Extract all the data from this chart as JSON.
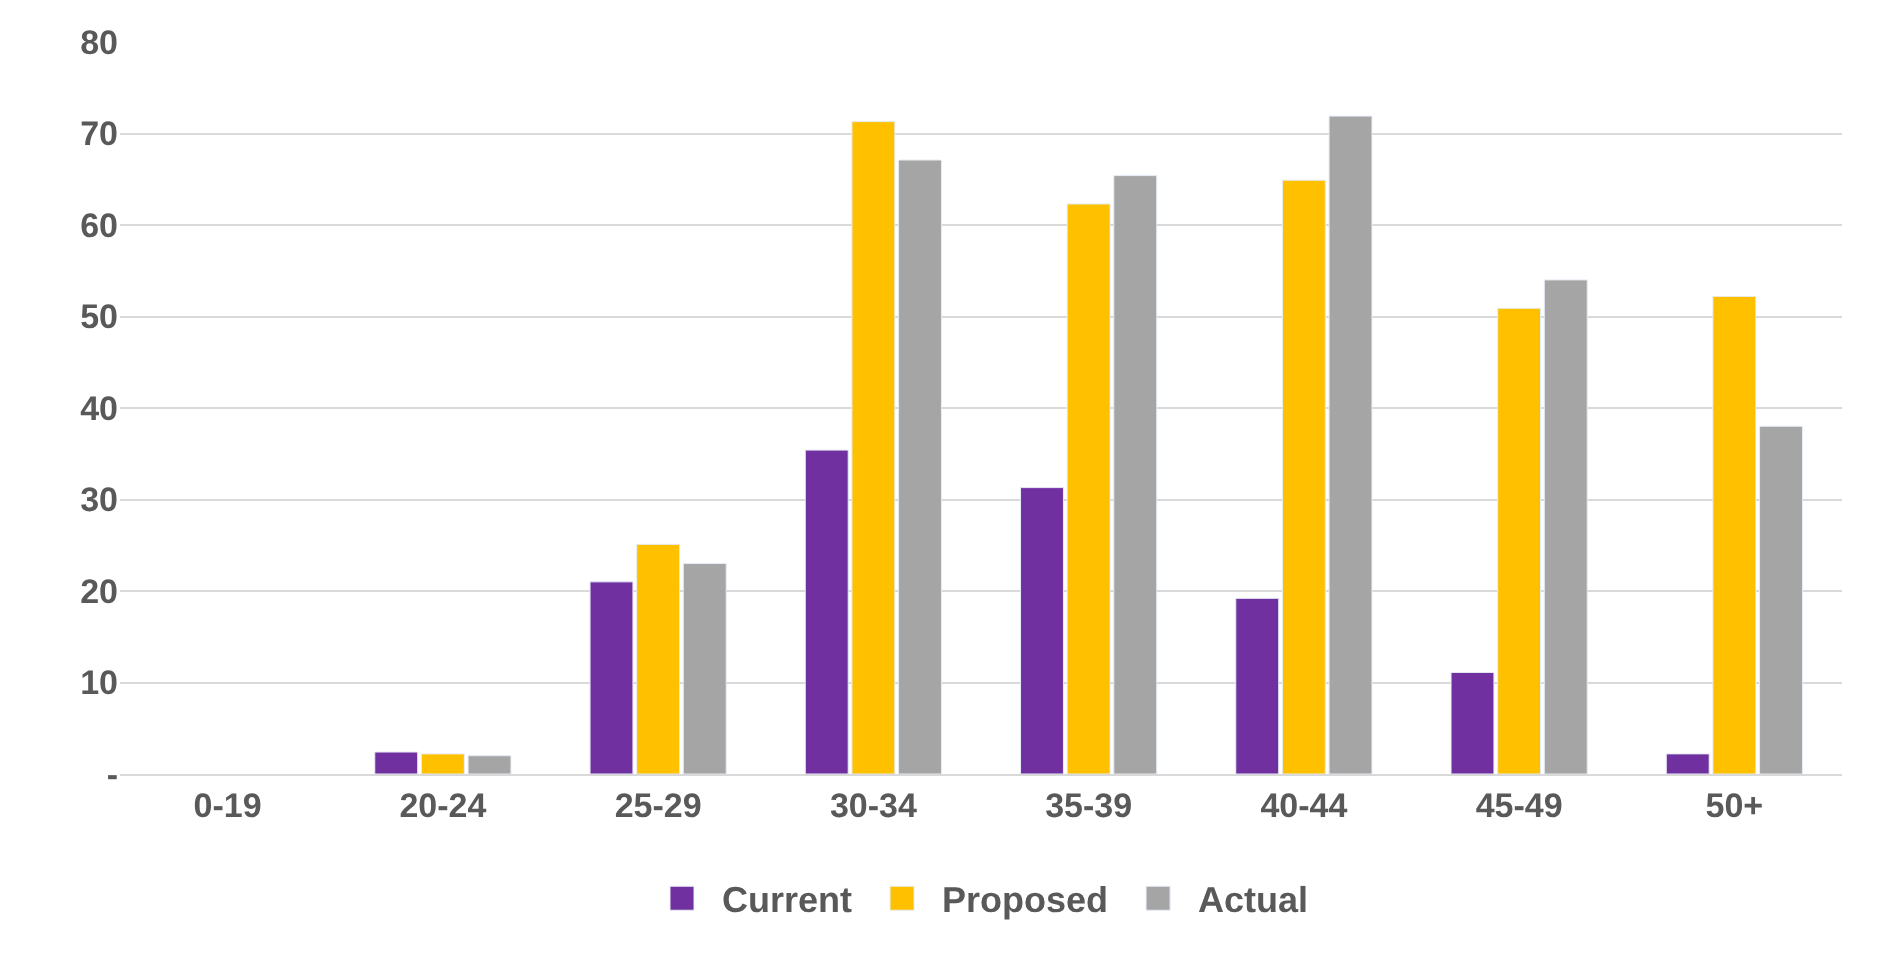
{
  "chart_data": {
    "type": "bar",
    "categories": [
      "0-19",
      "20-24",
      "25-29",
      "30-34",
      "35-39",
      "40-44",
      "45-49",
      "50+"
    ],
    "series": [
      {
        "name": "Current",
        "color": "#7030a0",
        "values": [
          null,
          2.4,
          21,
          35.4,
          31.3,
          19.2,
          11.1,
          2.2
        ]
      },
      {
        "name": "Proposed",
        "color": "#ffc000",
        "values": [
          null,
          2.2,
          25.1,
          71.3,
          62.3,
          64.9,
          50.9,
          52.2
        ]
      },
      {
        "name": "Actual",
        "color": "#a5a5a5",
        "values": [
          null,
          2,
          23,
          67.1,
          65.4,
          71.9,
          54,
          38
        ]
      }
    ],
    "ylim": [
      0,
      80
    ],
    "yticks": [
      {
        "value": 0,
        "label": "-"
      },
      10,
      20,
      30,
      40,
      50,
      60,
      70,
      80
    ],
    "grid": "y",
    "legend": "bottom"
  }
}
